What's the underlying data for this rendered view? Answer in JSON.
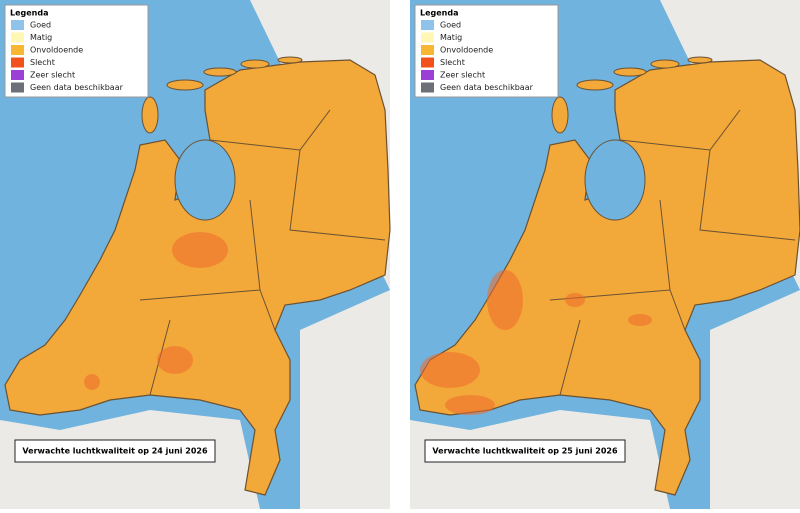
{
  "maps": [
    {
      "legend": {
        "title": "Legenda",
        "items": [
          {
            "label": "Goed",
            "color": "#8fc3ea"
          },
          {
            "label": "Matig",
            "color": "#fff7b3"
          },
          {
            "label": "Onvoldoende",
            "color": "#f7b733"
          },
          {
            "label": "Slecht",
            "color": "#f2511c"
          },
          {
            "label": "Zeer slecht",
            "color": "#9b3fd6"
          },
          {
            "label": "Geen data beschikbaar",
            "color": "#6d6f78"
          }
        ]
      },
      "caption": "Verwachte luchtkwaliteit op 24 juni 2026"
    },
    {
      "legend": {
        "title": "Legenda",
        "items": [
          {
            "label": "Goed",
            "color": "#8fc3ea"
          },
          {
            "label": "Matig",
            "color": "#fff7b3"
          },
          {
            "label": "Onvoldoende",
            "color": "#f7b733"
          },
          {
            "label": "Slecht",
            "color": "#f2511c"
          },
          {
            "label": "Zeer slecht",
            "color": "#9b3fd6"
          },
          {
            "label": "Geen data beschikbaar",
            "color": "#6d6f78"
          }
        ]
      },
      "caption": "Verwachte luchtkwaliteit op 25 juni 2026"
    }
  ]
}
